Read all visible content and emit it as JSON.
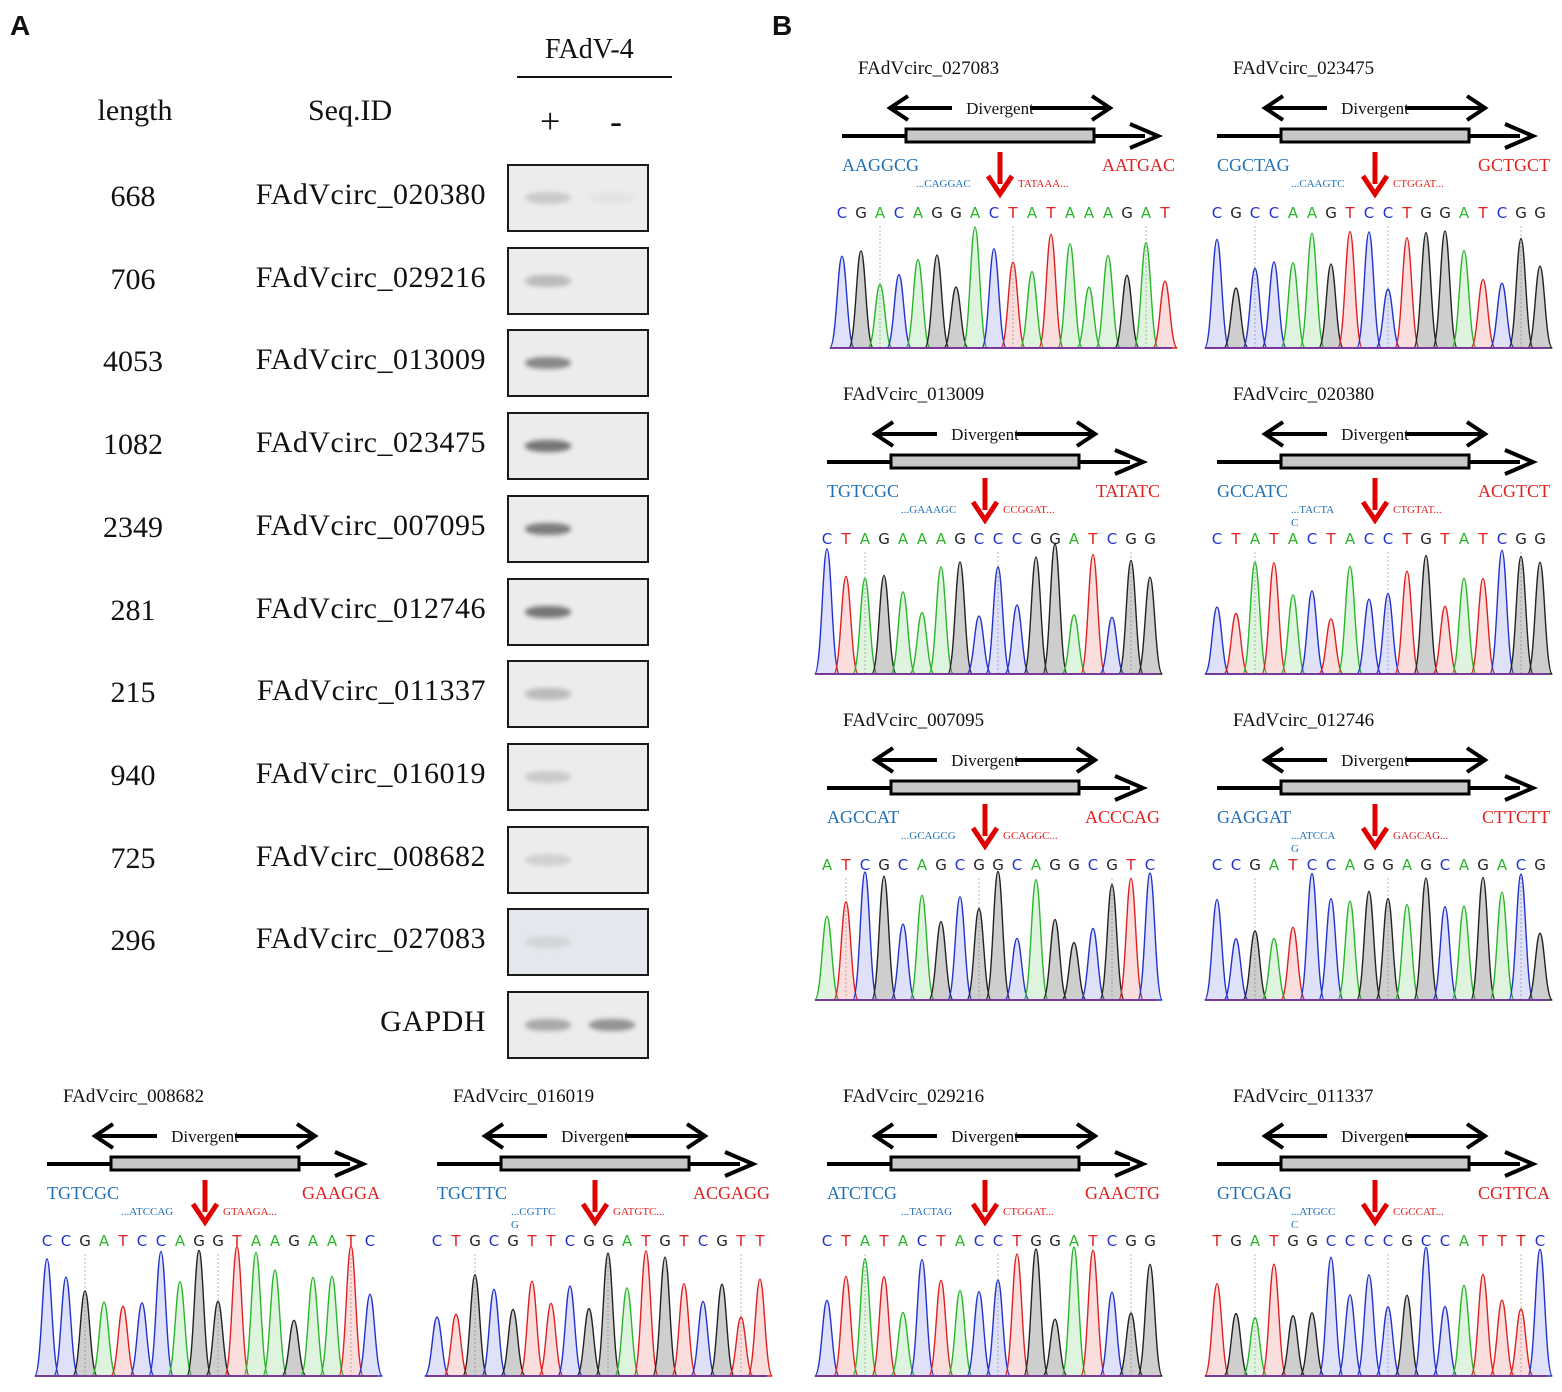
{
  "panel_a": {
    "letter": "A",
    "group_label": "FAdV-4",
    "col_length": "length",
    "col_seqid": "Seq.ID",
    "col_plus": "+",
    "col_minus": "-",
    "rows": [
      {
        "length": "668",
        "seq_id": "FAdVcirc_020380",
        "plus": 0.25,
        "minus": 0.02
      },
      {
        "length": "706",
        "seq_id": "FAdVcirc_029216",
        "plus": 0.35,
        "minus": 0.0
      },
      {
        "length": "4053",
        "seq_id": "FAdVcirc_013009",
        "plus": 0.6,
        "minus": 0.0
      },
      {
        "length": "1082",
        "seq_id": "FAdVcirc_023475",
        "plus": 0.7,
        "minus": 0.0
      },
      {
        "length": "2349",
        "seq_id": "FAdVcirc_007095",
        "plus": 0.65,
        "minus": 0.0
      },
      {
        "length": "281",
        "seq_id": "FAdVcirc_012746",
        "plus": 0.7,
        "minus": 0.0
      },
      {
        "length": "215",
        "seq_id": "FAdVcirc_011337",
        "plus": 0.35,
        "minus": 0.0
      },
      {
        "length": "940",
        "seq_id": "FAdVcirc_016019",
        "plus": 0.25,
        "minus": 0.0
      },
      {
        "length": "725",
        "seq_id": "FAdVcirc_008682",
        "plus": 0.2,
        "minus": 0.0
      },
      {
        "length": "296",
        "seq_id": "FAdVcirc_027083",
        "plus": 0.15,
        "minus": 0.0
      }
    ],
    "control": {
      "seq_id": "GAPDH",
      "plus": 0.45,
      "minus": 0.55
    }
  },
  "panel_b": {
    "letter": "B",
    "divergent_label": "Divergent",
    "colors": {
      "A": "#2bb52b",
      "C": "#2233cc",
      "G": "#222222",
      "T": "#e02020",
      "left_flank": "#1e6fb8",
      "right_flank": "#e02020",
      "arrow": "#e00000"
    },
    "junctions": [
      {
        "id": "FAdVcirc_027083",
        "left": "AAGGCG",
        "right": "AATGAC",
        "left_small": "...CAGGAC",
        "left_small2": "",
        "right_small": "TATAAA...",
        "sequence": "CGACAGGACTATAAAGAT",
        "junction_index": 9
      },
      {
        "id": "FAdVcirc_023475",
        "left": "CGCTAG",
        "right": "GCTGCT",
        "left_small": "...CAAGTC",
        "left_small2": "",
        "right_small": "CTGGAT...",
        "sequence": "CGCCAAGTCCTGGATCGG",
        "junction_index": 9
      },
      {
        "id": "FAdVcirc_013009",
        "left": "TGTCGC",
        "right": "TATATC",
        "left_small": "...GAAAGC",
        "left_small2": "",
        "right_small": "CCGGAT...",
        "sequence": "CTAGAAAGCCCGGATCGG",
        "junction_index": 9
      },
      {
        "id": "FAdVcirc_020380",
        "left": "GCCATC",
        "right": "ACGTCT",
        "left_small": "...TACTA",
        "left_small2": "C",
        "right_small": "CTGTAT...",
        "sequence": "CTATACTACCTGTATCGG",
        "junction_index": 9
      },
      {
        "id": "FAdVcirc_007095",
        "left": "AGCCAT",
        "right": "ACCCAG",
        "left_small": "...GCAGCG",
        "left_small2": "",
        "right_small": "GCAGGC...",
        "sequence": "ATCGCAGCGGCAGGCGTC",
        "junction_index": 8
      },
      {
        "id": "FAdVcirc_012746",
        "left": "GAGGAT",
        "right": "CTTCTT",
        "left_small": "...ATCCA",
        "left_small2": "G",
        "right_small": "GAGCAG...",
        "sequence": "CCGATCCAGGAGCAGACG",
        "junction_index": 9
      },
      {
        "id": "FAdVcirc_008682",
        "left": "TGTCGC",
        "right": "GAAGGA",
        "left_small": "...ATCCAG",
        "left_small2": "",
        "right_small": "GTAAGA...",
        "sequence": "CCGATCCAGGTAAGAATC",
        "junction_index": 9
      },
      {
        "id": "FAdVcirc_016019",
        "left": "TGCTTC",
        "right": "ACGAGG",
        "left_small": "...CGTTC",
        "left_small2": "G",
        "right_small": "GATGTC...",
        "sequence": "CTGCGTTCGGATGTCGTT",
        "junction_index": 9
      },
      {
        "id": "FAdVcirc_029216",
        "left": "ATCTCG",
        "right": "GAACTG",
        "left_small": "...TACTAG",
        "left_small2": "",
        "right_small": "CTGGAT...",
        "sequence": "CTATACTACCTGGATCGG",
        "junction_index": 9
      },
      {
        "id": "FAdVcirc_011337",
        "left": "GTCGAG",
        "right": "CGTTCA",
        "left_small": "...ATGCC",
        "left_small2": "C",
        "right_small": "CGCCAT...",
        "sequence": "TGATGGCCCCGCCATTTC",
        "junction_index": 9
      }
    ]
  }
}
